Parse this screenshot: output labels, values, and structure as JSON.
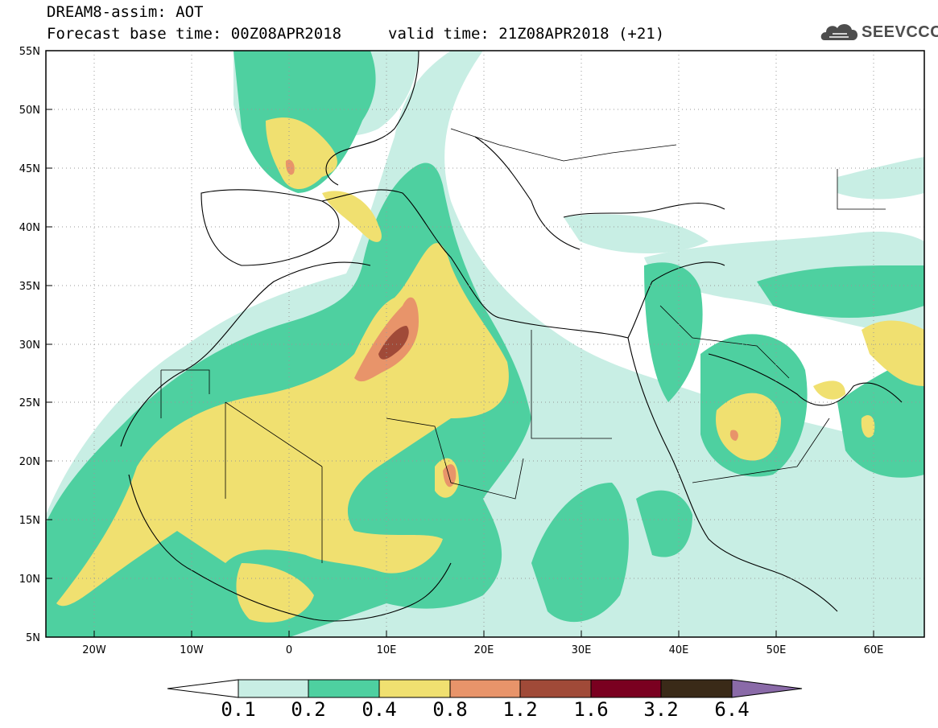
{
  "header": {
    "title": "DREAM8-assim: AOT",
    "base_time": "Forecast base time: 00Z08APR2018",
    "valid_time": "valid time: 21Z08APR2018 (+21)",
    "logo": "SEEVCCC"
  },
  "axes": {
    "lat_labels": [
      "55N",
      "50N",
      "45N",
      "40N",
      "35N",
      "30N",
      "25N",
      "20N",
      "15N",
      "10N",
      "5N"
    ],
    "lon_labels": [
      "20W",
      "10W",
      "0",
      "10E",
      "20E",
      "30E",
      "40E",
      "50E",
      "60E"
    ],
    "lat_range": [
      5,
      55
    ],
    "lon_range": [
      -25,
      65
    ]
  },
  "colorbar": {
    "labels": [
      "0.1",
      "0.2",
      "0.4",
      "0.8",
      "1.2",
      "1.6",
      "3.2",
      "6.4"
    ],
    "colors": [
      "#c8eee4",
      "#4ed0a0",
      "#f0e070",
      "#e8946a",
      "#a04a38",
      "#7a0020",
      "#3a2a18",
      "#8a6aa8"
    ]
  },
  "palette": {
    "aot_01_02": "#c8eee4",
    "aot_02_04": "#4ed0a0",
    "aot_04_08": "#f0e070",
    "aot_08_12": "#e8946a",
    "aot_12_16": "#a04a38",
    "coast": "#000000",
    "grid": "#aaaaaa"
  }
}
